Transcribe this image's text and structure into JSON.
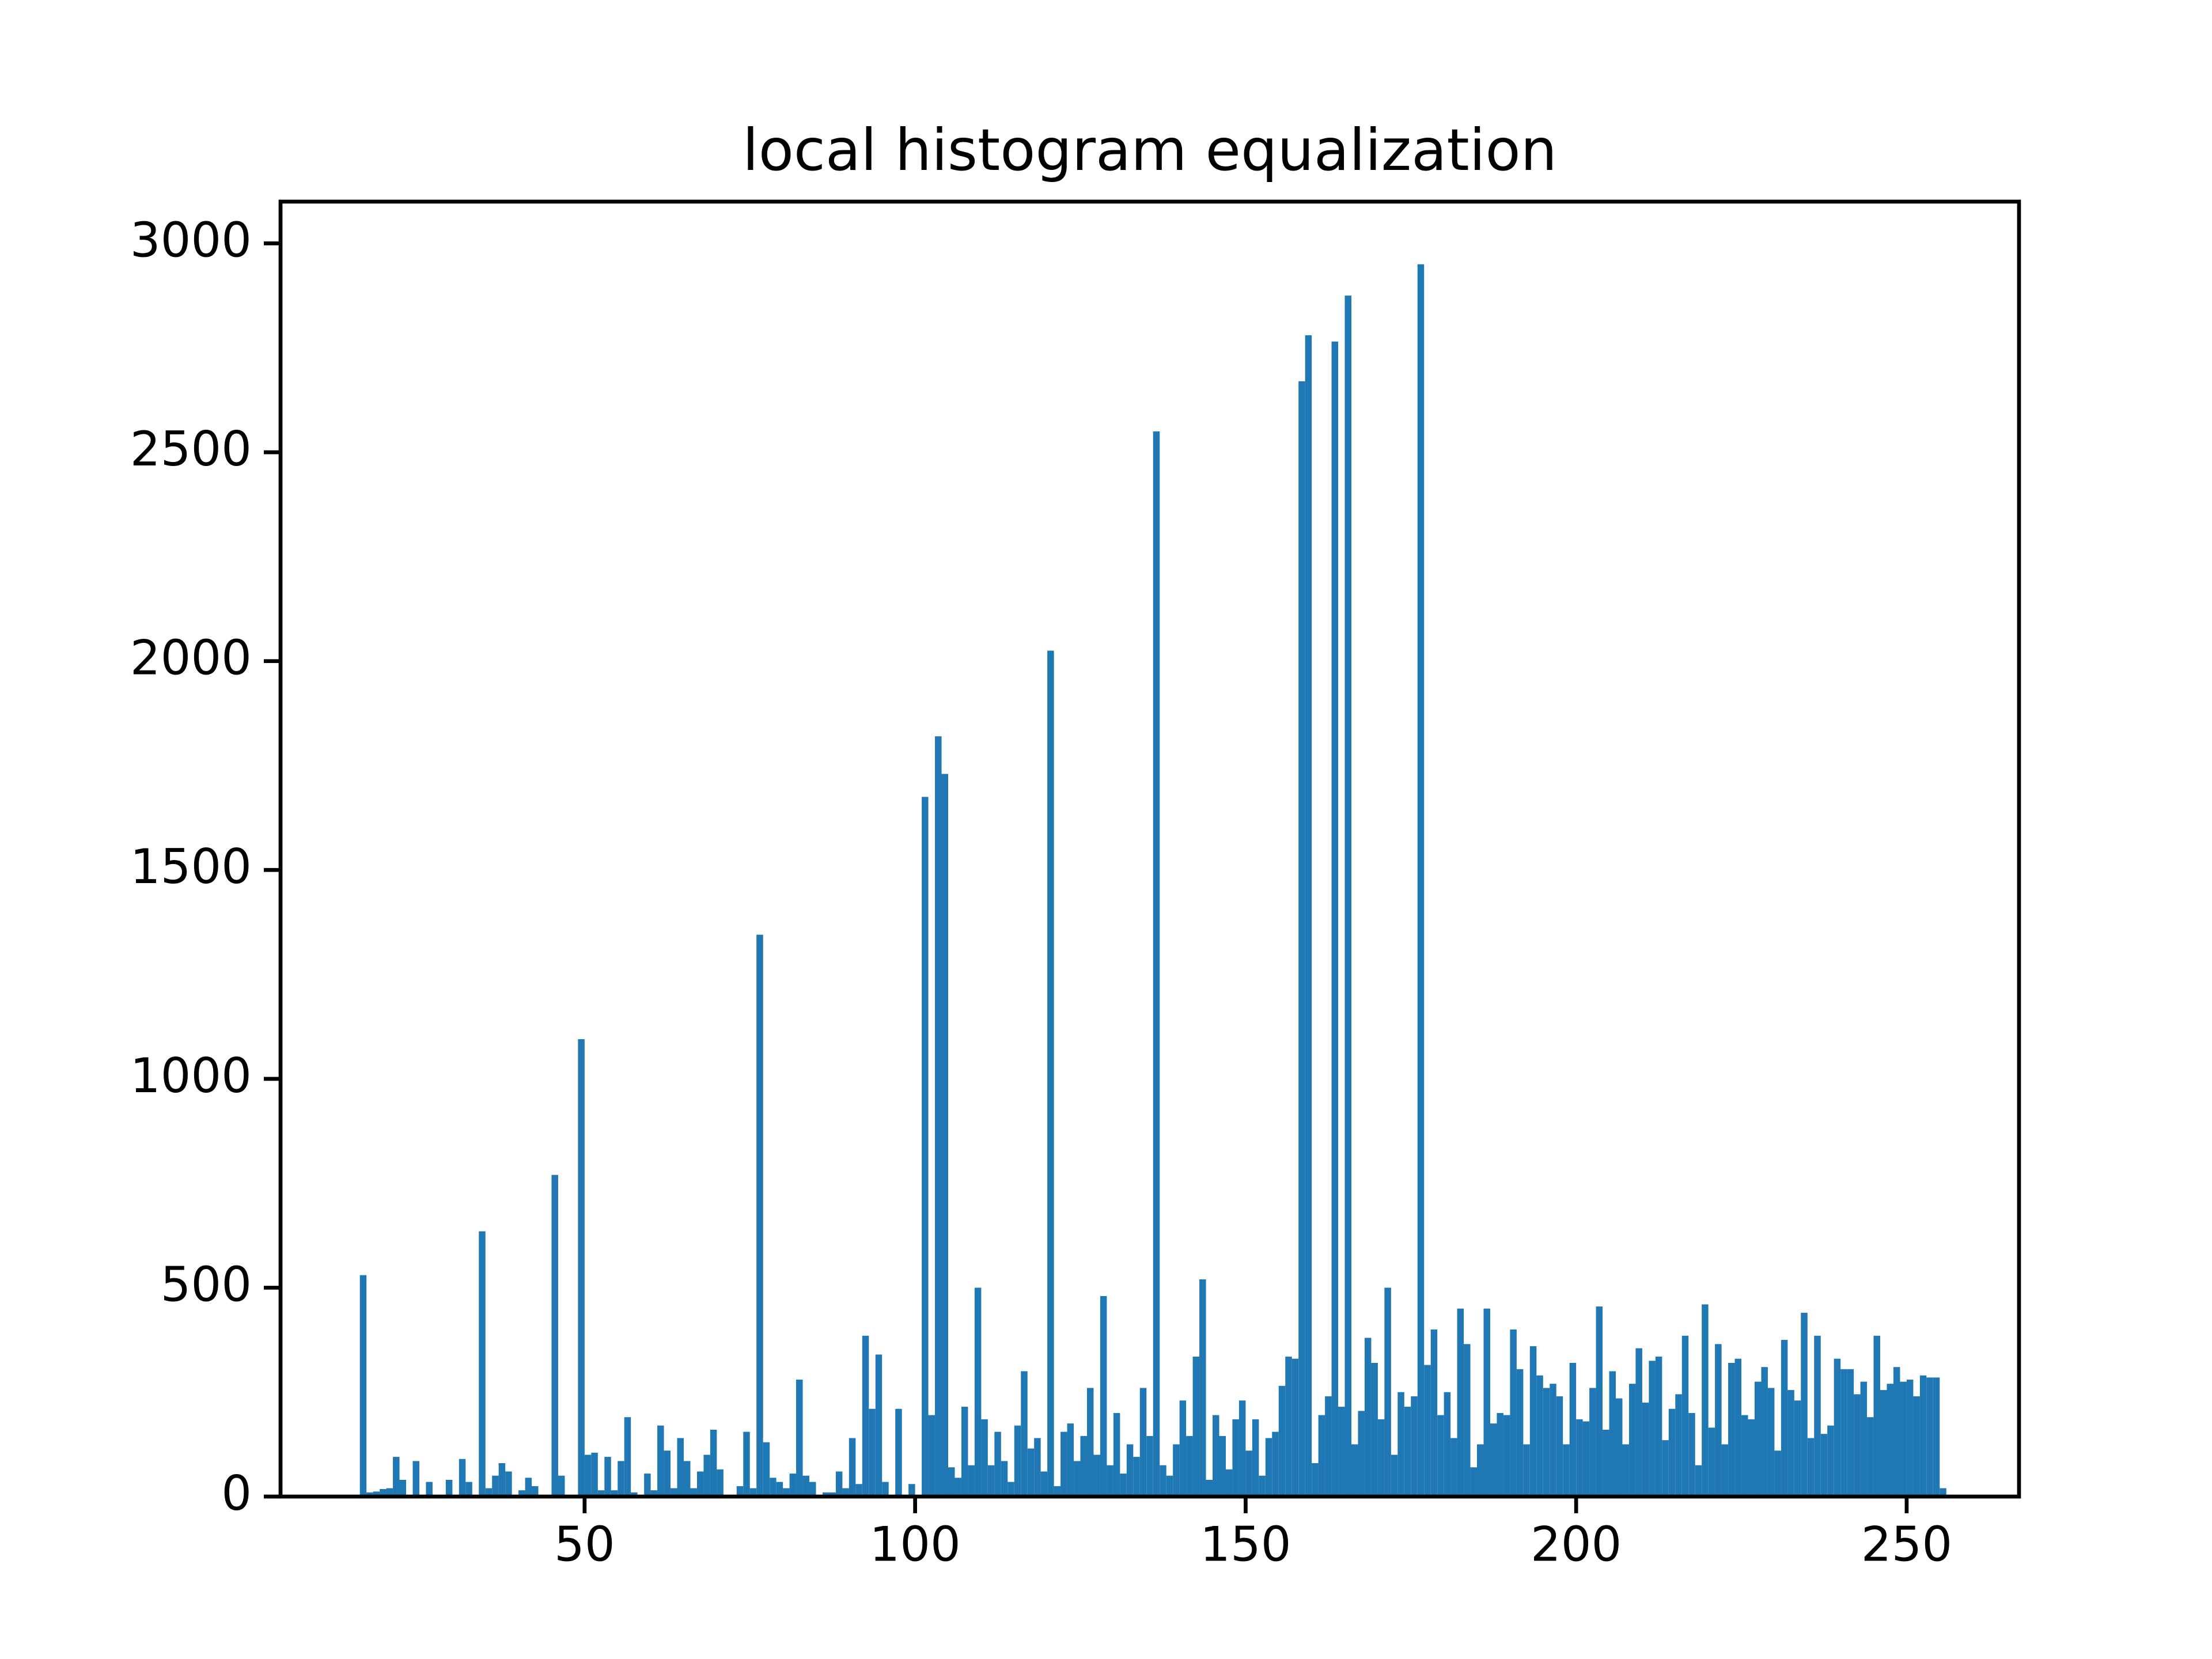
{
  "chart_data": {
    "type": "histogram",
    "title": "local histogram equalization",
    "bins": [
      16,
      17,
      18,
      19,
      20,
      21,
      22,
      23,
      24,
      25,
      26,
      27,
      28,
      29,
      30,
      31,
      32,
      33,
      34,
      35,
      36,
      37,
      38,
      39,
      40,
      41,
      42,
      43,
      44,
      45,
      46,
      47,
      48,
      49,
      50,
      51,
      52,
      53,
      54,
      55,
      56,
      57,
      58,
      59,
      60,
      61,
      62,
      63,
      64,
      65,
      66,
      67,
      68,
      69,
      70,
      71,
      72,
      73,
      74,
      75,
      76,
      77,
      78,
      79,
      80,
      81,
      82,
      83,
      84,
      85,
      86,
      87,
      88,
      89,
      90,
      91,
      92,
      93,
      94,
      95,
      96,
      97,
      98,
      99,
      100,
      101,
      102,
      103,
      104,
      105,
      106,
      107,
      108,
      109,
      110,
      111,
      112,
      113,
      114,
      115,
      116,
      117,
      118,
      119,
      120,
      121,
      122,
      123,
      124,
      125,
      126,
      127,
      128,
      129,
      130,
      131,
      132,
      133,
      134,
      135,
      136,
      137,
      138,
      139,
      140,
      141,
      142,
      143,
      144,
      145,
      146,
      147,
      148,
      149,
      150,
      151,
      152,
      153,
      154,
      155,
      156,
      157,
      158,
      159,
      160,
      161,
      162,
      163,
      164,
      165,
      166,
      167,
      168,
      169,
      170,
      171,
      172,
      173,
      174,
      175,
      176,
      177,
      178,
      179,
      180,
      181,
      182,
      183,
      184,
      185,
      186,
      187,
      188,
      189,
      190,
      191,
      192,
      193,
      194,
      195,
      196,
      197,
      198,
      199,
      200,
      201,
      202,
      203,
      204,
      205,
      206,
      207,
      208,
      209,
      210,
      211,
      212,
      213,
      214,
      215,
      216,
      217,
      218,
      219,
      220,
      221,
      222,
      223,
      224,
      225,
      226,
      227,
      228,
      229,
      230,
      231,
      232,
      233,
      234,
      235,
      236,
      237,
      238,
      239,
      240,
      241,
      242,
      243,
      244,
      245,
      246,
      247,
      248,
      249,
      250,
      251,
      252,
      253,
      254,
      255,
      256
    ],
    "counts": [
      530,
      10,
      12,
      18,
      20,
      95,
      40,
      0,
      85,
      0,
      35,
      0,
      0,
      40,
      0,
      90,
      35,
      0,
      635,
      20,
      50,
      80,
      60,
      0,
      15,
      45,
      25,
      0,
      0,
      770,
      50,
      0,
      0,
      1095,
      100,
      105,
      15,
      95,
      15,
      85,
      190,
      10,
      0,
      55,
      15,
      170,
      110,
      20,
      140,
      85,
      20,
      60,
      100,
      160,
      65,
      0,
      0,
      25,
      155,
      20,
      1345,
      130,
      45,
      35,
      20,
      55,
      280,
      50,
      35,
      0,
      10,
      10,
      60,
      20,
      140,
      30,
      385,
      210,
      340,
      35,
      0,
      210,
      0,
      30,
      0,
      1675,
      195,
      1820,
      1730,
      70,
      45,
      215,
      75,
      500,
      185,
      75,
      155,
      85,
      35,
      170,
      300,
      115,
      140,
      60,
      2025,
      25,
      155,
      175,
      85,
      145,
      260,
      100,
      480,
      75,
      200,
      55,
      125,
      95,
      260,
      145,
      2550,
      75,
      50,
      125,
      230,
      145,
      335,
      520,
      40,
      195,
      145,
      65,
      185,
      230,
      110,
      185,
      50,
      140,
      155,
      265,
      335,
      330,
      2670,
      2780,
      80,
      195,
      240,
      2765,
      215,
      2875,
      125,
      205,
      380,
      320,
      185,
      500,
      100,
      250,
      215,
      240,
      2950,
      315,
      400,
      195,
      250,
      140,
      450,
      365,
      70,
      125,
      450,
      175,
      200,
      195,
      400,
      305,
      125,
      360,
      290,
      260,
      270,
      240,
      125,
      320,
      185,
      180,
      260,
      455,
      160,
      300,
      235,
      125,
      270,
      355,
      225,
      325,
      335,
      135,
      210,
      245,
      385,
      200,
      75,
      460,
      165,
      365,
      125,
      320,
      330,
      195,
      185,
      275,
      310,
      260,
      110,
      375,
      255,
      230,
      440,
      140,
      385,
      150,
      170,
      330,
      305,
      305,
      245,
      275,
      190,
      385,
      255,
      270,
      310,
      275,
      280,
      240,
      290,
      285,
      285,
      20
    ],
    "color": "#1f77b4",
    "xlim": [
      4,
      267
    ],
    "xticks": [
      50,
      100,
      150,
      200,
      250
    ],
    "ylim": [
      0,
      3100
    ],
    "yticks": [
      0,
      500,
      1000,
      1500,
      2000,
      2500,
      3000
    ],
    "grid": false
  }
}
